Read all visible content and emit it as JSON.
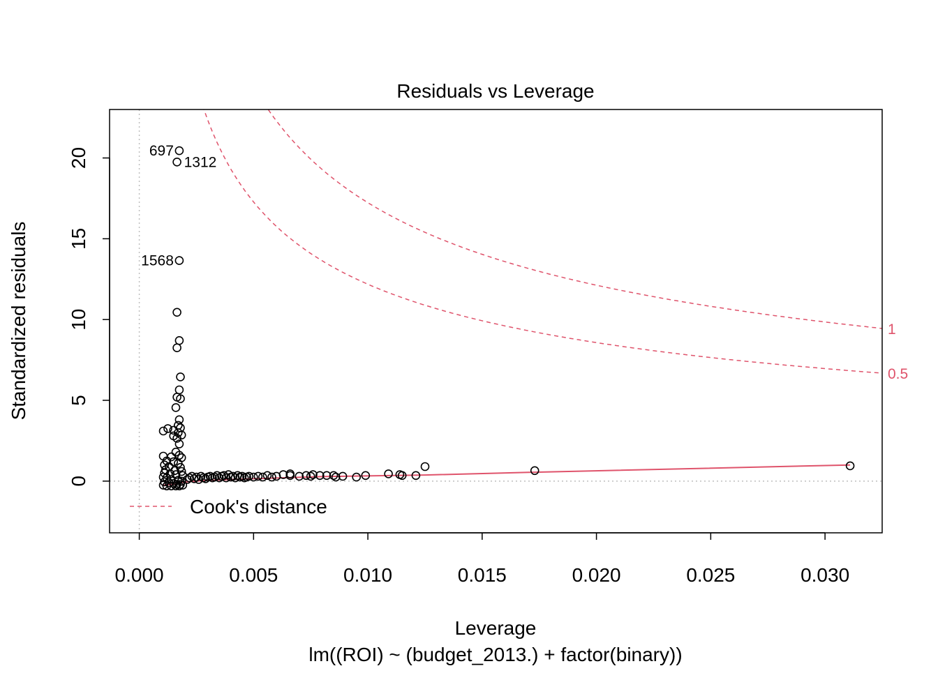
{
  "chart_data": {
    "type": "scatter",
    "title": "Residuals vs Leverage",
    "xlabel": "Leverage",
    "ylabel": "Standardized residuals",
    "subtitle": "lm((ROI) ~ (budget_2013.) + factor(binary))",
    "xlim": [
      -0.0013,
      0.0325
    ],
    "ylim": [
      -3.2,
      23.0
    ],
    "x_ticks": [
      {
        "value": 0.0,
        "label": "0.000"
      },
      {
        "value": 0.005,
        "label": "0.005"
      },
      {
        "value": 0.01,
        "label": "0.010"
      },
      {
        "value": 0.015,
        "label": "0.015"
      },
      {
        "value": 0.02,
        "label": "0.020"
      },
      {
        "value": 0.025,
        "label": "0.025"
      },
      {
        "value": 0.03,
        "label": "0.030"
      }
    ],
    "y_ticks": [
      {
        "value": 0,
        "label": "0"
      },
      {
        "value": 5,
        "label": "5"
      },
      {
        "value": 10,
        "label": "10"
      },
      {
        "value": 15,
        "label": "15"
      },
      {
        "value": 20,
        "label": "20"
      }
    ],
    "points": [
      [
        0.00175,
        20.45
      ],
      [
        0.00165,
        19.75
      ],
      [
        0.00175,
        13.65
      ],
      [
        0.00165,
        10.45
      ],
      [
        0.00175,
        8.7
      ],
      [
        0.00165,
        8.25
      ],
      [
        0.0018,
        6.45
      ],
      [
        0.00175,
        5.65
      ],
      [
        0.00165,
        5.2
      ],
      [
        0.0018,
        5.1
      ],
      [
        0.0016,
        4.55
      ],
      [
        0.00175,
        3.8
      ],
      [
        0.0017,
        3.45
      ],
      [
        0.0018,
        3.3
      ],
      [
        0.0015,
        3.15
      ],
      [
        0.00125,
        3.25
      ],
      [
        0.00105,
        3.1
      ],
      [
        0.0017,
        3.0
      ],
      [
        0.00185,
        2.85
      ],
      [
        0.0015,
        2.8
      ],
      [
        0.00165,
        2.65
      ],
      [
        0.00175,
        2.3
      ],
      [
        0.0016,
        1.8
      ],
      [
        0.00175,
        1.6
      ],
      [
        0.00105,
        1.55
      ],
      [
        0.0014,
        1.5
      ],
      [
        0.00185,
        1.45
      ],
      [
        0.0012,
        1.25
      ],
      [
        0.0015,
        1.2
      ],
      [
        0.0017,
        1.1
      ],
      [
        0.0011,
        1.0
      ],
      [
        0.0013,
        0.9
      ],
      [
        0.0018,
        0.85
      ],
      [
        0.00115,
        0.7
      ],
      [
        0.00155,
        0.65
      ],
      [
        0.00185,
        0.6
      ],
      [
        0.0011,
        0.5
      ],
      [
        0.00135,
        0.45
      ],
      [
        0.0016,
        0.4
      ],
      [
        0.0019,
        0.35
      ],
      [
        0.00105,
        0.25
      ],
      [
        0.0012,
        0.2
      ],
      [
        0.0014,
        0.1
      ],
      [
        0.0017,
        0.05
      ],
      [
        0.00185,
        0.0
      ],
      [
        0.0011,
        -0.05
      ],
      [
        0.0013,
        -0.1
      ],
      [
        0.0015,
        -0.15
      ],
      [
        0.00165,
        -0.2
      ],
      [
        0.0018,
        -0.2
      ],
      [
        0.00105,
        -0.25
      ],
      [
        0.0012,
        -0.3
      ],
      [
        0.0014,
        -0.3
      ],
      [
        0.0016,
        -0.3
      ],
      [
        0.00175,
        -0.3
      ],
      [
        0.0019,
        -0.25
      ],
      [
        0.0021,
        0.1
      ],
      [
        0.0022,
        0.2
      ],
      [
        0.0023,
        0.3
      ],
      [
        0.0024,
        0.15
      ],
      [
        0.0025,
        0.25
      ],
      [
        0.0026,
        0.1
      ],
      [
        0.0027,
        0.3
      ],
      [
        0.0028,
        0.2
      ],
      [
        0.0029,
        0.15
      ],
      [
        0.003,
        0.25
      ],
      [
        0.0031,
        0.3
      ],
      [
        0.0032,
        0.2
      ],
      [
        0.0033,
        0.25
      ],
      [
        0.0034,
        0.35
      ],
      [
        0.0035,
        0.2
      ],
      [
        0.0036,
        0.3
      ],
      [
        0.0037,
        0.35
      ],
      [
        0.0038,
        0.2
      ],
      [
        0.0039,
        0.4
      ],
      [
        0.004,
        0.25
      ],
      [
        0.0041,
        0.3
      ],
      [
        0.0042,
        0.2
      ],
      [
        0.0043,
        0.35
      ],
      [
        0.0044,
        0.25
      ],
      [
        0.0045,
        0.3
      ],
      [
        0.0046,
        0.2
      ],
      [
        0.0047,
        0.25
      ],
      [
        0.0048,
        0.3
      ],
      [
        0.005,
        0.25
      ],
      [
        0.0052,
        0.3
      ],
      [
        0.0054,
        0.25
      ],
      [
        0.0056,
        0.35
      ],
      [
        0.0058,
        0.25
      ],
      [
        0.006,
        0.3
      ],
      [
        0.0063,
        0.4
      ],
      [
        0.0066,
        0.35
      ],
      [
        0.0066,
        0.45
      ],
      [
        0.007,
        0.3
      ],
      [
        0.0073,
        0.35
      ],
      [
        0.0075,
        0.3
      ],
      [
        0.0076,
        0.4
      ],
      [
        0.0079,
        0.35
      ],
      [
        0.0082,
        0.35
      ],
      [
        0.0085,
        0.35
      ],
      [
        0.0086,
        0.25
      ],
      [
        0.0089,
        0.3
      ],
      [
        0.0095,
        0.25
      ],
      [
        0.0099,
        0.35
      ],
      [
        0.0109,
        0.45
      ],
      [
        0.0114,
        0.4
      ],
      [
        0.0115,
        0.35
      ],
      [
        0.0121,
        0.35
      ],
      [
        0.0125,
        0.9
      ],
      [
        0.0173,
        0.65
      ],
      [
        0.0311,
        0.95
      ]
    ],
    "point_labels": [
      {
        "text": "697",
        "x": 0.00175,
        "y": 20.45,
        "side": "left"
      },
      {
        "text": "1312",
        "x": 0.00165,
        "y": 19.75,
        "side": "right"
      },
      {
        "text": "1568",
        "x": 0.00175,
        "y": 13.65,
        "side": "left"
      }
    ],
    "smooth_line": [
      [
        0.001,
        -0.25
      ],
      [
        0.0015,
        -0.2
      ],
      [
        0.002,
        -0.05
      ],
      [
        0.003,
        0.05
      ],
      [
        0.005,
        0.15
      ],
      [
        0.008,
        0.28
      ],
      [
        0.0125,
        0.38
      ],
      [
        0.0173,
        0.55
      ],
      [
        0.0311,
        1.0
      ]
    ],
    "cook_distance_levels": [
      {
        "level": 1,
        "label": "1"
      },
      {
        "level": 0.5,
        "label": "0.5"
      }
    ],
    "cook_p": 3,
    "reference_lines": {
      "vertical_x": 0,
      "horizontal_y": 0
    },
    "legend": {
      "position": "bottom-left",
      "entries": [
        "Cook's distance"
      ]
    },
    "colors": {
      "points": "#000000",
      "cook_line": "#DF536B",
      "smooth_line": "#DF536B",
      "reference_line": "#BEBEBE",
      "axis": "#000000"
    },
    "grid": false
  }
}
